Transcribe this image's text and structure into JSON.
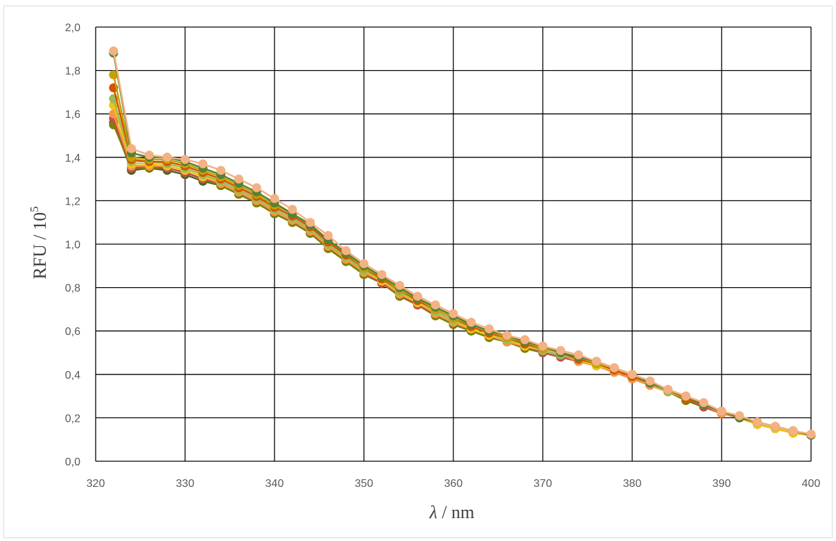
{
  "chart_data": {
    "type": "line",
    "xlabel_var": "λ",
    "xlabel_unit": " / nm",
    "ylabel_base": "RFU / 10",
    "ylabel_exp": "5",
    "xlim": [
      320,
      400
    ],
    "ylim": [
      0,
      2.0
    ],
    "x_ticks": [
      320,
      330,
      340,
      350,
      360,
      370,
      380,
      390,
      400
    ],
    "x_tick_labels": [
      "320",
      "330",
      "340",
      "350",
      "360",
      "370",
      "380",
      "390",
      "400"
    ],
    "y_ticks": [
      0,
      0.2,
      0.4,
      0.6,
      0.8,
      1.0,
      1.2,
      1.4,
      1.6,
      1.8,
      2.0
    ],
    "y_tick_labels": [
      "0,0",
      "0,2",
      "0,4",
      "0,6",
      "0,8",
      "1,0",
      "1,2",
      "1,4",
      "1,6",
      "1,8",
      "2,0"
    ],
    "grid": true,
    "legend": "none",
    "x": [
      322,
      324,
      326,
      328,
      330,
      332,
      334,
      336,
      338,
      340,
      342,
      344,
      346,
      348,
      350,
      352,
      354,
      356,
      358,
      360,
      362,
      364,
      366,
      368,
      370,
      372,
      374,
      376,
      378,
      380,
      382,
      384,
      386,
      388,
      390,
      392,
      394,
      396,
      398,
      400
    ],
    "series": [
      {
        "color": "#4f6228",
        "values": [
          1.56,
          1.34,
          1.35,
          1.34,
          1.32,
          1.29,
          1.27,
          1.23,
          1.19,
          1.14,
          1.1,
          1.05,
          0.98,
          0.92,
          0.86,
          0.82,
          0.76,
          0.72,
          0.67,
          0.63,
          0.6,
          0.57,
          0.55,
          0.52,
          0.5,
          0.48,
          0.46,
          0.44,
          0.41,
          0.38,
          0.35,
          0.32,
          0.28,
          0.25,
          0.22,
          0.2,
          0.17,
          0.15,
          0.13,
          0.12
        ]
      },
      {
        "color": "#7f7f00",
        "values": [
          1.55,
          1.35,
          1.35,
          1.35,
          1.33,
          1.3,
          1.27,
          1.23,
          1.19,
          1.14,
          1.1,
          1.05,
          0.98,
          0.92,
          0.86,
          0.82,
          0.76,
          0.72,
          0.67,
          0.63,
          0.6,
          0.57,
          0.55,
          0.52,
          0.5,
          0.48,
          0.46,
          0.44,
          0.41,
          0.38,
          0.35,
          0.32,
          0.28,
          0.25,
          0.22,
          0.2,
          0.17,
          0.15,
          0.13,
          0.12
        ]
      },
      {
        "color": "#c0504d",
        "values": [
          1.58,
          1.35,
          1.36,
          1.35,
          1.33,
          1.3,
          1.28,
          1.24,
          1.2,
          1.15,
          1.11,
          1.06,
          0.99,
          0.93,
          0.87,
          0.82,
          0.77,
          0.72,
          0.68,
          0.64,
          0.61,
          0.58,
          0.55,
          0.53,
          0.5,
          0.48,
          0.46,
          0.44,
          0.41,
          0.38,
          0.35,
          0.32,
          0.29,
          0.25,
          0.22,
          0.2,
          0.17,
          0.15,
          0.13,
          0.12
        ]
      },
      {
        "color": "#f79646",
        "values": [
          1.6,
          1.36,
          1.36,
          1.36,
          1.34,
          1.31,
          1.28,
          1.24,
          1.2,
          1.15,
          1.11,
          1.06,
          0.99,
          0.93,
          0.87,
          0.83,
          0.77,
          0.73,
          0.68,
          0.64,
          0.61,
          0.58,
          0.55,
          0.53,
          0.51,
          0.49,
          0.46,
          0.44,
          0.41,
          0.38,
          0.35,
          0.32,
          0.29,
          0.26,
          0.22,
          0.2,
          0.17,
          0.15,
          0.13,
          0.12
        ]
      },
      {
        "color": "#f2c314",
        "values": [
          1.64,
          1.37,
          1.37,
          1.36,
          1.34,
          1.31,
          1.29,
          1.25,
          1.21,
          1.16,
          1.12,
          1.07,
          1.0,
          0.94,
          0.88,
          0.83,
          0.78,
          0.73,
          0.69,
          0.65,
          0.61,
          0.58,
          0.56,
          0.53,
          0.51,
          0.49,
          0.47,
          0.44,
          0.42,
          0.39,
          0.36,
          0.32,
          0.29,
          0.26,
          0.23,
          0.2,
          0.17,
          0.15,
          0.13,
          0.12
        ]
      },
      {
        "color": "#9bbb59",
        "values": [
          1.67,
          1.38,
          1.38,
          1.37,
          1.35,
          1.32,
          1.29,
          1.25,
          1.21,
          1.16,
          1.12,
          1.07,
          1.0,
          0.94,
          0.88,
          0.84,
          0.78,
          0.74,
          0.69,
          0.65,
          0.62,
          0.59,
          0.56,
          0.54,
          0.51,
          0.49,
          0.47,
          0.45,
          0.42,
          0.39,
          0.36,
          0.32,
          0.29,
          0.26,
          0.23,
          0.2,
          0.18,
          0.16,
          0.14,
          0.12
        ]
      },
      {
        "color": "#d35400",
        "values": [
          1.72,
          1.39,
          1.38,
          1.38,
          1.36,
          1.33,
          1.3,
          1.26,
          1.22,
          1.17,
          1.13,
          1.08,
          1.01,
          0.95,
          0.89,
          0.84,
          0.79,
          0.74,
          0.7,
          0.66,
          0.62,
          0.59,
          0.57,
          0.54,
          0.52,
          0.5,
          0.47,
          0.45,
          0.42,
          0.39,
          0.36,
          0.33,
          0.29,
          0.26,
          0.23,
          0.2,
          0.18,
          0.16,
          0.14,
          0.12
        ]
      },
      {
        "color": "#c8a000",
        "values": [
          1.78,
          1.4,
          1.39,
          1.39,
          1.37,
          1.34,
          1.31,
          1.27,
          1.23,
          1.18,
          1.14,
          1.09,
          1.02,
          0.96,
          0.89,
          0.85,
          0.79,
          0.75,
          0.7,
          0.66,
          0.63,
          0.6,
          0.57,
          0.55,
          0.52,
          0.5,
          0.48,
          0.45,
          0.43,
          0.4,
          0.36,
          0.33,
          0.3,
          0.26,
          0.23,
          0.2,
          0.18,
          0.16,
          0.14,
          0.12
        ]
      },
      {
        "color": "#548235",
        "values": [
          1.88,
          1.42,
          1.4,
          1.4,
          1.38,
          1.35,
          1.32,
          1.28,
          1.24,
          1.19,
          1.14,
          1.09,
          1.02,
          0.96,
          0.9,
          0.85,
          0.8,
          0.75,
          0.71,
          0.67,
          0.63,
          0.6,
          0.58,
          0.55,
          0.53,
          0.5,
          0.48,
          0.46,
          0.43,
          0.4,
          0.36,
          0.33,
          0.3,
          0.26,
          0.23,
          0.2,
          0.18,
          0.16,
          0.14,
          0.12
        ]
      },
      {
        "color": "#f4b183",
        "values": [
          1.89,
          1.44,
          1.41,
          1.4,
          1.39,
          1.37,
          1.34,
          1.3,
          1.26,
          1.21,
          1.16,
          1.1,
          1.04,
          0.97,
          0.91,
          0.86,
          0.81,
          0.76,
          0.72,
          0.68,
          0.64,
          0.61,
          0.58,
          0.56,
          0.53,
          0.51,
          0.49,
          0.46,
          0.43,
          0.4,
          0.37,
          0.33,
          0.3,
          0.27,
          0.23,
          0.21,
          0.18,
          0.16,
          0.14,
          0.125
        ]
      }
    ]
  }
}
